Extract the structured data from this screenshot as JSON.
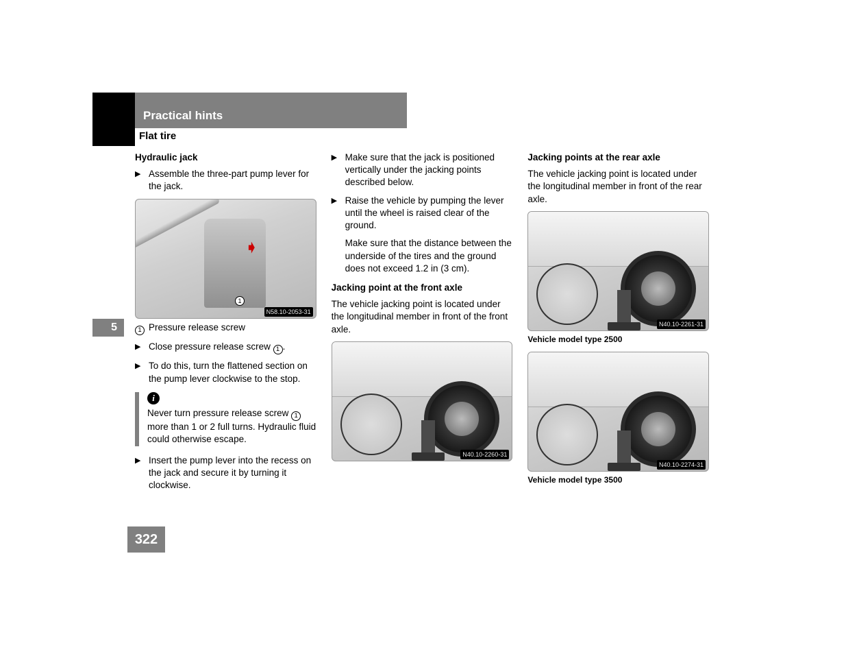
{
  "header": {
    "chapter_title": "Practical hints",
    "section_title": "Flat tire",
    "chapter_number": "5",
    "page_number": "322"
  },
  "col1": {
    "heading": "Hydraulic jack",
    "step1": "Assemble the three-part pump lever for the jack.",
    "fig1_code": "N58.10-2053-31",
    "callout1_num": "1",
    "callout1_text": "Pressure release screw",
    "step2_pre": "Close pressure release screw ",
    "step2_num": "1",
    "step2_post": ".",
    "step3": "To do this, turn the flattened section on the pump lever clockwise to the stop.",
    "info_pre": "Never turn pressure release screw ",
    "info_num": "1",
    "info_post": " more than 1 or 2 full turns. Hydraulic fluid could otherwise escape.",
    "step4": "Insert the pump lever into the recess on the jack and secure it by turning it clockwise."
  },
  "col2": {
    "step1": "Make sure that the jack is positioned vertically under the jacking points described below.",
    "step2": "Raise the vehicle by pumping the lever until the wheel is raised clear of the ground.",
    "note": "Make sure that the distance between the underside of the tires and the ground does not exceed 1.2 in (3 cm).",
    "heading2": "Jacking point at the front axle",
    "body2": "The vehicle jacking point is located under the longitudinal member in front of the front axle.",
    "fig1_code": "N40.10-2260-31"
  },
  "col3": {
    "heading": "Jacking points at the rear axle",
    "body1": "The vehicle jacking point is located under the longitudinal member in front of the rear axle.",
    "fig1_code": "N40.10-2261-31",
    "caption1": "Vehicle model type 2500",
    "fig2_code": "N40.10-2274-31",
    "caption2": "Vehicle model type 3500"
  },
  "styling": {
    "header_bg": "#808080",
    "header_text": "#ffffff",
    "body_text": "#000000",
    "body_fontsize": 13.5,
    "heading_fontsize": 17,
    "info_border": "#808080",
    "figure_border": "#999999"
  }
}
